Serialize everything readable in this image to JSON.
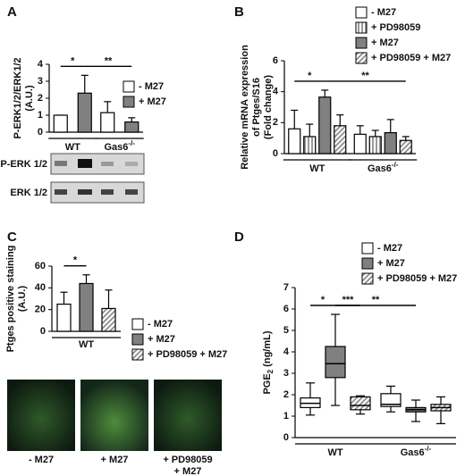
{
  "chart_data": [
    {
      "panel": "A",
      "type": "bar",
      "ylabel": [
        "P-ERK1/2/ERK1/2",
        "(A.U.)"
      ],
      "ylim": [
        0,
        4
      ],
      "yticks": [
        0,
        1,
        2,
        3,
        4
      ],
      "groups": [
        {
          "text": "WT"
        },
        {
          "text": "Gas6",
          "sup": "-/-"
        }
      ],
      "series": [
        {
          "name": "- M27",
          "color": "#ffffff",
          "values": [
            1.0,
            1.15
          ],
          "errors": [
            0,
            0.65
          ]
        },
        {
          "name": "+ M27",
          "color": "#808080",
          "values": [
            2.3,
            0.6
          ],
          "errors": [
            1.05,
            0.25
          ]
        }
      ],
      "significance": [
        {
          "label": "*",
          "from": [
            0,
            0
          ],
          "to": [
            0,
            1
          ]
        },
        {
          "label": "**",
          "from": [
            0,
            1
          ],
          "to": [
            1,
            1
          ]
        }
      ],
      "blot_labels": [
        "P-ERK 1/2",
        "ERK 1/2"
      ]
    },
    {
      "panel": "B",
      "type": "bar",
      "ylabel": [
        "Relative mRNA expression",
        "of Ptges/S16",
        "(Fold change)"
      ],
      "ylim": [
        0,
        6
      ],
      "yticks": [
        0,
        2,
        4,
        6
      ],
      "groups": [
        {
          "text": "WT"
        },
        {
          "text": "Gas6",
          "sup": "-/-"
        }
      ],
      "series": [
        {
          "name": "- M27",
          "color": "#ffffff",
          "values": [
            1.6,
            1.25
          ],
          "errors": [
            1.2,
            0.55
          ]
        },
        {
          "name": "+ PD98059",
          "color": "#808080",
          "pattern": "vertical",
          "values": [
            1.1,
            1.1
          ],
          "errors": [
            0.8,
            0.4
          ]
        },
        {
          "name": "+ M27",
          "color": "#808080",
          "values": [
            3.65,
            1.35
          ],
          "errors": [
            0.45,
            0.85
          ]
        },
        {
          "name": "+ PD98059 + M27",
          "color": "#808080",
          "pattern": "diagonal",
          "values": [
            1.8,
            0.85
          ],
          "errors": [
            0.7,
            0.25
          ]
        }
      ],
      "significance": [
        {
          "label": "*",
          "from": [
            0,
            0
          ],
          "to": [
            0,
            2
          ]
        },
        {
          "label": "**",
          "from": [
            0,
            2
          ],
          "to": [
            1,
            3
          ]
        }
      ]
    },
    {
      "panel": "C",
      "type": "bar",
      "ylabel": [
        "Ptges positive staining",
        "(A.U.)"
      ],
      "ylim": [
        0,
        60
      ],
      "yticks": [
        0,
        20,
        40,
        60
      ],
      "groups": [
        {
          "text": "WT"
        }
      ],
      "series": [
        {
          "name": "- M27",
          "color": "#ffffff",
          "values": [
            25
          ],
          "errors": [
            11
          ]
        },
        {
          "name": "+ M27",
          "color": "#808080",
          "values": [
            44
          ],
          "errors": [
            8
          ]
        },
        {
          "name": "+ PD98059 + M27",
          "color": "#808080",
          "pattern": "diagonal",
          "values": [
            21
          ],
          "errors": [
            17
          ]
        }
      ],
      "significance": [
        {
          "label": "*",
          "from": [
            0,
            0
          ],
          "to": [
            0,
            1
          ]
        }
      ],
      "image_captions": [
        [
          "- M27"
        ],
        [
          "+ M27"
        ],
        [
          "+ PD98059",
          "+ M27"
        ]
      ]
    },
    {
      "panel": "D",
      "type": "box",
      "ylabel": [
        {
          "text": "PGE",
          "sub": "2",
          "tail": " (ng/mL)"
        }
      ],
      "ylim": [
        0,
        7
      ],
      "yticks": [
        0,
        1,
        2,
        3,
        4,
        5,
        6,
        7
      ],
      "groups": [
        {
          "text": "WT"
        },
        {
          "text": "Gas6",
          "sup": "-/-"
        }
      ],
      "series": [
        {
          "name": "- M27",
          "color": "#ffffff",
          "values": [
            {
              "min": 1.05,
              "q1": 1.4,
              "median": 1.6,
              "q3": 1.85,
              "max": 2.55
            },
            {
              "min": 1.2,
              "q1": 1.45,
              "median": 1.55,
              "q3": 2.05,
              "max": 2.4
            }
          ]
        },
        {
          "name": "+ M27",
          "color": "#808080",
          "values": [
            {
              "min": 1.5,
              "q1": 2.8,
              "median": 3.45,
              "q3": 4.25,
              "max": 5.75
            },
            {
              "min": 0.75,
              "q1": 1.2,
              "median": 1.3,
              "q3": 1.4,
              "max": 1.75
            }
          ]
        },
        {
          "name": "+ PD98059 + M27",
          "color": "#808080",
          "pattern": "diagonal",
          "values": [
            {
              "min": 1.1,
              "q1": 1.3,
              "median": 1.5,
              "q3": 1.9,
              "max": 1.95
            },
            {
              "min": 0.65,
              "q1": 1.25,
              "median": 1.4,
              "q3": 1.55,
              "max": 1.9
            }
          ]
        }
      ],
      "significance": [
        {
          "label": "*",
          "from": [
            0,
            0
          ],
          "to": [
            0,
            1
          ]
        },
        {
          "label": "***",
          "from": [
            0,
            1
          ],
          "to": [
            0,
            2
          ]
        },
        {
          "label": "**",
          "from": [
            0,
            1
          ],
          "to": [
            1,
            1
          ]
        }
      ]
    }
  ]
}
